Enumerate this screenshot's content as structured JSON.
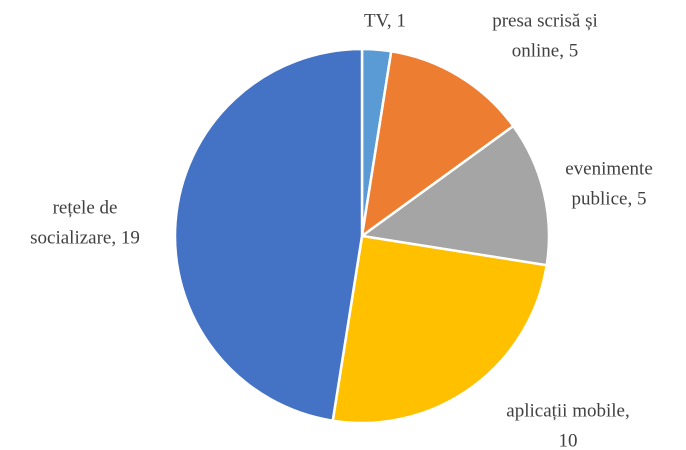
{
  "chart_data": {
    "type": "pie",
    "values": [
      1,
      5,
      5,
      10,
      19
    ],
    "value_labels": [
      [
        "TV, 1"
      ],
      [
        "presa scrisă și",
        "online, 5"
      ],
      [
        "evenimente",
        "publice, 5"
      ],
      [
        "aplicații mobile,",
        "10"
      ],
      [
        "rețele de",
        "socializare, 19"
      ]
    ],
    "colors": [
      "#5b9bd5",
      "#ed7d31",
      "#a5a5a5",
      "#ffc000",
      "#4472c4"
    ],
    "start_angle": 0,
    "direction": "clockwise"
  }
}
